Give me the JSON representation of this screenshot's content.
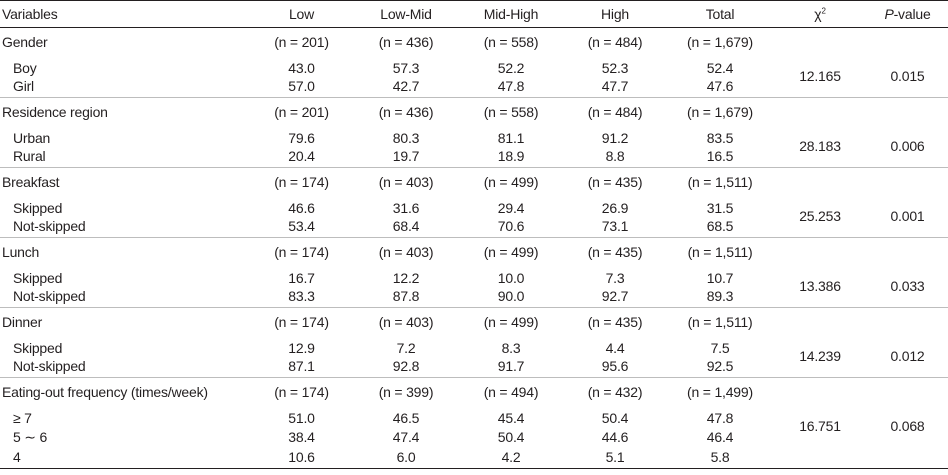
{
  "headers": {
    "variables": "Variables",
    "low": "Low",
    "low_mid": "Low-Mid",
    "mid_high": "Mid-High",
    "high": "High",
    "total": "Total",
    "chi_base": "χ",
    "chi_sup": "2",
    "p_italic": "P",
    "p_rest": "-value"
  },
  "groups": [
    {
      "label": "Gender",
      "n": [
        "(n = 201)",
        "(n = 436)",
        "(n = 558)",
        "(n = 484)",
        "(n = 1,679)"
      ],
      "chi2": "12.165",
      "p": "0.015",
      "rows": [
        {
          "label": "Boy",
          "values": [
            "43.0",
            "57.3",
            "52.2",
            "52.3",
            "52.4"
          ]
        },
        {
          "label": "Girl",
          "values": [
            "57.0",
            "42.7",
            "47.8",
            "47.7",
            "47.6"
          ]
        }
      ]
    },
    {
      "label": "Residence region",
      "n": [
        "(n = 201)",
        "(n = 436)",
        "(n = 558)",
        "(n = 484)",
        "(n = 1,679)"
      ],
      "chi2": "28.183",
      "p": "0.006",
      "rows": [
        {
          "label": "Urban",
          "values": [
            "79.6",
            "80.3",
            "81.1",
            "91.2",
            "83.5"
          ]
        },
        {
          "label": "Rural",
          "values": [
            "20.4",
            "19.7",
            "18.9",
            "8.8",
            "16.5"
          ]
        }
      ]
    },
    {
      "label": "Breakfast",
      "n": [
        "(n = 174)",
        "(n = 403)",
        "(n = 499)",
        "(n = 435)",
        "(n = 1,511)"
      ],
      "chi2": "25.253",
      "p": "0.001",
      "rows": [
        {
          "label": "Skipped",
          "values": [
            "46.6",
            "31.6",
            "29.4",
            "26.9",
            "31.5"
          ]
        },
        {
          "label": "Not-skipped",
          "values": [
            "53.4",
            "68.4",
            "70.6",
            "73.1",
            "68.5"
          ]
        }
      ]
    },
    {
      "label": "Lunch",
      "n": [
        "(n = 174)",
        "(n = 403)",
        "(n = 499)",
        "(n = 435)",
        "(n = 1,511)"
      ],
      "chi2": "13.386",
      "p": "0.033",
      "rows": [
        {
          "label": "Skipped",
          "values": [
            "16.7",
            "12.2",
            "10.0",
            "7.3",
            "10.7"
          ]
        },
        {
          "label": "Not-skipped",
          "values": [
            "83.3",
            "87.8",
            "90.0",
            "92.7",
            "89.3"
          ]
        }
      ]
    },
    {
      "label": "Dinner",
      "n": [
        "(n = 174)",
        "(n = 403)",
        "(n = 499)",
        "(n = 435)",
        "(n = 1,511)"
      ],
      "chi2": "14.239",
      "p": "0.012",
      "rows": [
        {
          "label": "Skipped",
          "values": [
            "12.9",
            "7.2",
            "8.3",
            "4.4",
            "7.5"
          ]
        },
        {
          "label": "Not-skipped",
          "values": [
            "87.1",
            "92.8",
            "91.7",
            "95.6",
            "92.5"
          ]
        }
      ]
    },
    {
      "label": "Eating-out frequency (times/week)",
      "n": [
        "(n = 174)",
        "(n = 399)",
        "(n = 494)",
        "(n = 432)",
        "(n = 1,499)"
      ],
      "chi2": "16.751",
      "p": "0.068",
      "rows": [
        {
          "label": "≥ 7",
          "values": [
            "51.0",
            "46.5",
            "45.4",
            "50.4",
            "47.8"
          ]
        },
        {
          "label": "5 ∼ 6",
          "values": [
            "38.4",
            "47.4",
            "50.4",
            "44.6",
            "46.4"
          ]
        },
        {
          "label": "4",
          "values": [
            "10.6",
            "6.0",
            "4.2",
            "5.1",
            "5.8"
          ]
        }
      ]
    }
  ]
}
